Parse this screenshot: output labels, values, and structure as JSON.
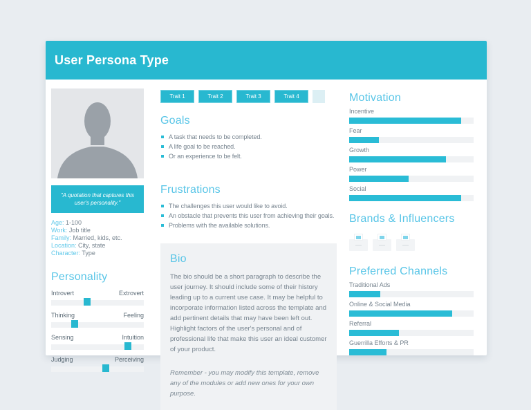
{
  "header": {
    "title": "User Persona Type"
  },
  "traits": {
    "buttons": [
      "Trait 1",
      "Trait 2",
      "Trait 3",
      "Trait 4"
    ]
  },
  "profile": {
    "quote": "\"A quotation that captures this user's personality.\"",
    "demographics": [
      {
        "label": "Age:",
        "value": "1-100"
      },
      {
        "label": "Work:",
        "value": "Job title"
      },
      {
        "label": "Family:",
        "value": "Married, kids, etc."
      },
      {
        "label": "Location:",
        "value": "City, state"
      },
      {
        "label": "Character:",
        "value": "Type"
      }
    ]
  },
  "personality": {
    "title": "Personality",
    "sliders": [
      {
        "left": "Introvert",
        "right": "Extrovert",
        "position_pct": 39
      },
      {
        "left": "Thinking",
        "right": "Feeling",
        "position_pct": 25
      },
      {
        "left": "Sensing",
        "right": "Intuition",
        "position_pct": 83
      },
      {
        "left": "Judging",
        "right": "Perceiving",
        "position_pct": 59
      }
    ]
  },
  "goals": {
    "title": "Goals",
    "items": [
      "A task that needs to be completed.",
      "A life goal to be reached.",
      "Or an experience to be felt."
    ]
  },
  "frustrations": {
    "title": "Frustrations",
    "items": [
      "The challenges this user would like to avoid.",
      "An obstacle that prevents this user from achieving their goals.",
      "Problems with the available solutions."
    ]
  },
  "bio": {
    "title": "Bio",
    "paragraph": "The bio should be a short paragraph to describe the user journey. It should include some of their history leading up to a current use case. It may be helpful to incorporate information listed across the template and add pertinent details that may have been left out. Highlight factors of the user's personal and of professional life that make this user an ideal customer of your product.",
    "note": "Remember - you may modify this template, remove any of the modules or add new ones for your own purpose."
  },
  "motivation": {
    "title": "Motivation",
    "bars": [
      {
        "label": "Incentive",
        "value_pct": 90
      },
      {
        "label": "Fear",
        "value_pct": 24
      },
      {
        "label": "Growth",
        "value_pct": 78
      },
      {
        "label": "Power",
        "value_pct": 48
      },
      {
        "label": "Social",
        "value_pct": 90
      }
    ]
  },
  "brands": {
    "title": "Brands & Influencers",
    "placeholder_count": 3
  },
  "channels": {
    "title": "Preferred Channels",
    "bars": [
      {
        "label": "Traditional Ads",
        "value_pct": 25
      },
      {
        "label": "Online & Social Media",
        "value_pct": 83
      },
      {
        "label": "Referral",
        "value_pct": 40
      },
      {
        "label": "Guerrilla Efforts & PR",
        "value_pct": 30
      }
    ]
  },
  "colors": {
    "accent_teal": "#28b8d0",
    "heading_blue": "#58c5e7",
    "bar_fill": "#2abcd6",
    "text_gray": "#76838e",
    "track_gray": "#f0f2f4",
    "background": "#e9edf1"
  }
}
